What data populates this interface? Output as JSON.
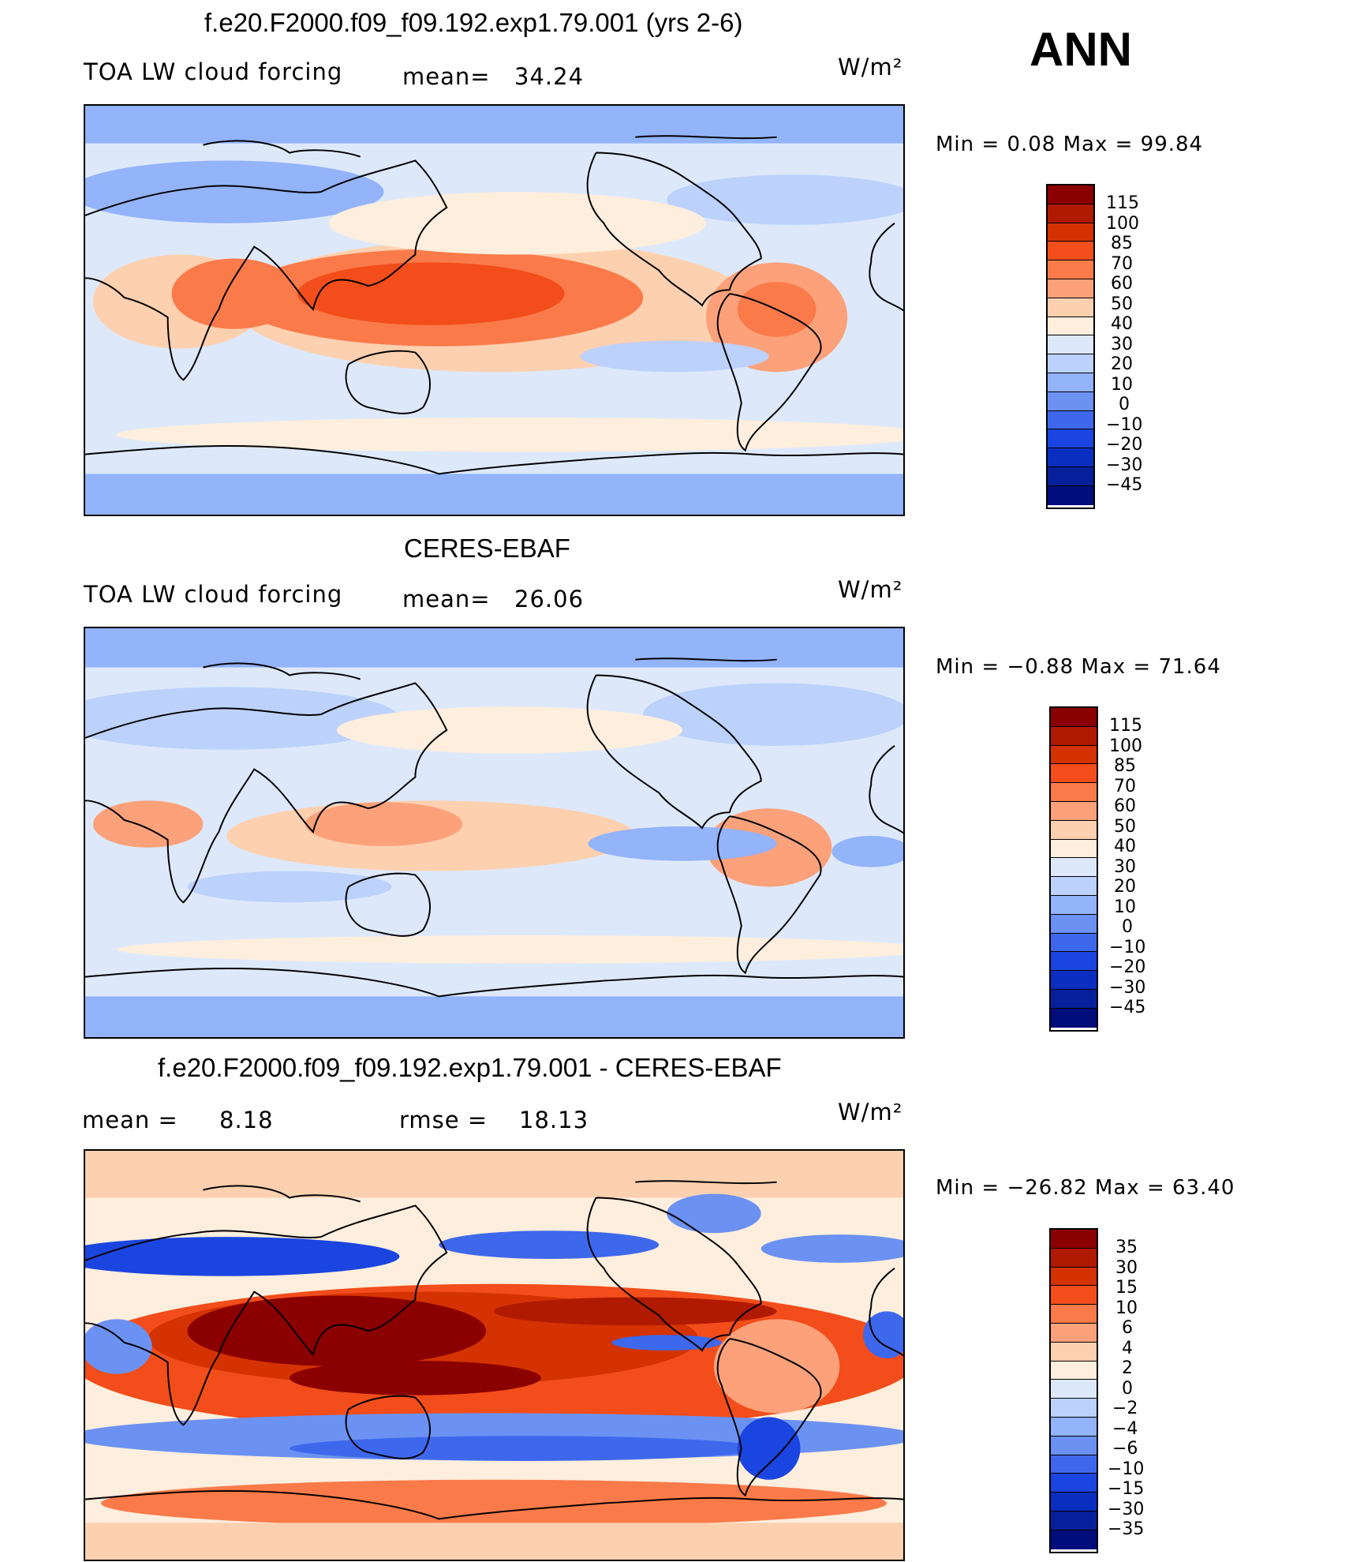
{
  "season": "ANN",
  "units": "W/m²",
  "panels": [
    {
      "id": "model",
      "title": "f.e20.F2000.f09_f09.192.exp1.79.001 (yrs 2-6)",
      "variable": "TOA LW cloud forcing",
      "mean_label": "mean=",
      "mean": "34.24",
      "units": "W/m²",
      "minmax": "Min  =    0.08  Max  =    99.84",
      "colorbar": {
        "colors": [
          "#8b0000",
          "#b01a00",
          "#d43200",
          "#f24d1a",
          "#fb7a4a",
          "#fca17a",
          "#fdd0b0",
          "#fdeedd",
          "#dde9fb",
          "#bcd1fb",
          "#93b3fb",
          "#6b92f3",
          "#3e68ec",
          "#1b45e0",
          "#0a2ec0",
          "#05209a",
          "#000d7a"
        ],
        "labels": [
          "115",
          "100",
          "85",
          "70",
          "60",
          "50",
          "40",
          "30",
          "20",
          "10",
          "0",
          "−10",
          "−20",
          "−30",
          "−45"
        ]
      }
    },
    {
      "id": "obs",
      "title": "CERES-EBAF",
      "variable": "TOA LW cloud forcing",
      "mean_label": "mean=",
      "mean": "26.06",
      "units": "W/m²",
      "minmax": "Min  =   −0.88  Max  =    71.64",
      "colorbar": {
        "colors": [
          "#8b0000",
          "#b01a00",
          "#d43200",
          "#f24d1a",
          "#fb7a4a",
          "#fca17a",
          "#fdd0b0",
          "#fdeedd",
          "#dde9fb",
          "#bcd1fb",
          "#93b3fb",
          "#6b92f3",
          "#3e68ec",
          "#1b45e0",
          "#0a2ec0",
          "#05209a",
          "#000d7a"
        ],
        "labels": [
          "115",
          "100",
          "85",
          "70",
          "60",
          "50",
          "40",
          "30",
          "20",
          "10",
          "0",
          "−10",
          "−20",
          "−30",
          "−45"
        ]
      }
    },
    {
      "id": "diff",
      "title": "f.e20.F2000.f09_f09.192.exp1.79.001 - CERES-EBAF",
      "mean_label": "mean  =",
      "mean": "8.18",
      "rmse_label": "rmse  =",
      "rmse": "18.13",
      "units": "W/m²",
      "minmax": "Min  = −26.82  Max  =    63.40",
      "colorbar": {
        "colors": [
          "#8b0000",
          "#b01a00",
          "#d43200",
          "#f24d1a",
          "#fb7a4a",
          "#fca17a",
          "#fdd0b0",
          "#fdeedd",
          "#dde9fb",
          "#bcd1fb",
          "#93b3fb",
          "#6b92f3",
          "#3e68ec",
          "#1b45e0",
          "#0a2ec0",
          "#05209a",
          "#000d7a"
        ],
        "labels": [
          "35",
          "30",
          "15",
          "10",
          "6",
          "4",
          "2",
          "0",
          "−2",
          "−4",
          "−6",
          "−10",
          "−15",
          "−30",
          "−35"
        ]
      }
    }
  ]
}
